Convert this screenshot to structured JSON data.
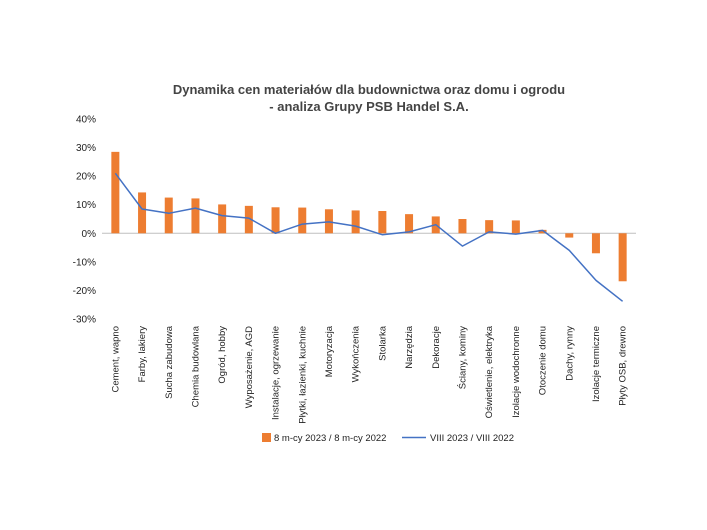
{
  "chart_data": {
    "type": "bar",
    "title": "Dynamika cen materiałów dla budownictwa oraz domu i ogrodu",
    "subtitle": "- analiza Grupy PSB Handel S.A.",
    "categories": [
      "Cement, wapno",
      "Farby, lakiery",
      "Sucha zabudowa",
      "Chemia budowlana",
      "Ogród, hobby",
      "Wyposażenie, AGD",
      "Instalacje, ogrzewanie",
      "Płytki, łazienki, kuchnie",
      "Motoryzacja",
      "Wykończenia",
      "Stolarka",
      "Narzędzia",
      "Dekoracje",
      "Ściany, kominy",
      "Oświetlenie, elektryka",
      "Izolacje wodochronne",
      "Otoczenie domu",
      "Dachy, rynny",
      "Izolacje termiczne",
      "Płyty OSB, drewno"
    ],
    "series": [
      {
        "name": "8 m-cy 2023 / 8 m-cy 2022",
        "type": "bar",
        "color": "#ED7D31",
        "values": [
          28.5,
          14.3,
          12.5,
          12.2,
          10.1,
          9.6,
          9.1,
          9.0,
          8.4,
          8.0,
          7.8,
          6.7,
          5.9,
          5.0,
          4.6,
          4.5,
          1.2,
          -1.5,
          -7.0,
          -16.8
        ]
      },
      {
        "name": "VIII 2023 / VIII 2022",
        "type": "line",
        "color": "#4472C4",
        "values": [
          21.0,
          8.5,
          7.0,
          8.8,
          6.2,
          5.3,
          0.0,
          3.2,
          4.0,
          2.5,
          -0.5,
          0.5,
          3.0,
          -4.5,
          0.5,
          -0.3,
          1.0,
          -6.0,
          -16.5,
          -23.8
        ]
      }
    ],
    "yticks": [
      "40%",
      "30%",
      "20%",
      "10%",
      "0%",
      "-10%",
      "-20%",
      "-30%"
    ],
    "ylim": [
      -30,
      40
    ],
    "grid": false,
    "legend": "bottom"
  }
}
